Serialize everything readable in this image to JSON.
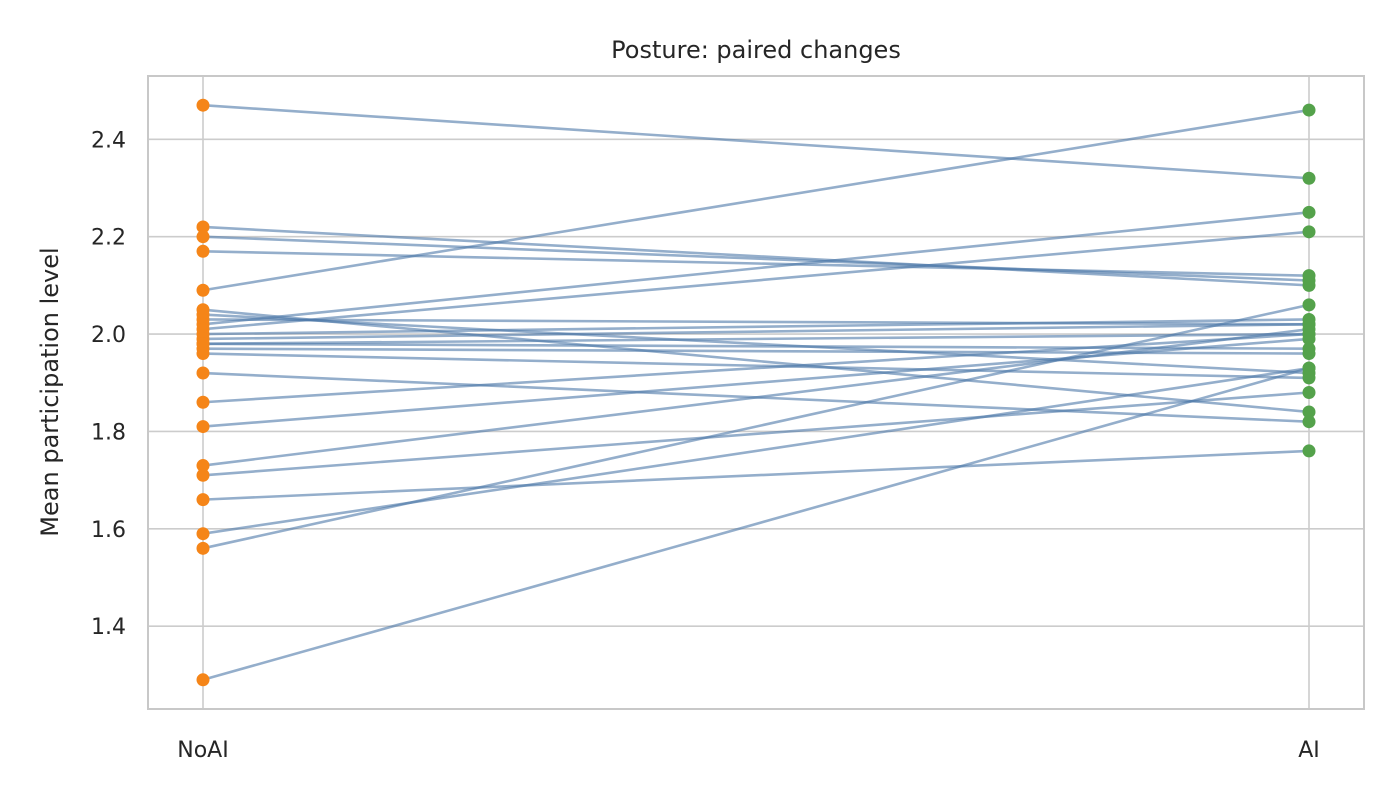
{
  "chart_data": {
    "type": "line",
    "title": "Posture: paired changes",
    "xlabel": "",
    "ylabel": "Mean participation level",
    "categories": [
      "NoAI",
      "AI"
    ],
    "ylim": [
      1.23,
      2.53
    ],
    "yticks": [
      1.4,
      1.6,
      1.8,
      2.0,
      2.2,
      2.4
    ],
    "ytick_labels": [
      "1.4",
      "1.6",
      "1.8",
      "2.0",
      "2.2",
      "2.4"
    ],
    "grid": true,
    "colors": {
      "lines": "#4c78a8",
      "noai_markers": "#f58518",
      "ai_markers": "#54a24b"
    },
    "pairs": [
      [
        2.47,
        2.32
      ],
      [
        2.22,
        2.1
      ],
      [
        2.2,
        2.11
      ],
      [
        2.17,
        2.12
      ],
      [
        2.09,
        2.46
      ],
      [
        2.05,
        1.84
      ],
      [
        2.04,
        1.92
      ],
      [
        2.03,
        2.02
      ],
      [
        2.02,
        2.25
      ],
      [
        2.01,
        2.21
      ],
      [
        2.0,
        2.03
      ],
      [
        1.99,
        2.02
      ],
      [
        1.98,
        2.0
      ],
      [
        1.98,
        1.97
      ],
      [
        1.97,
        1.96
      ],
      [
        1.96,
        1.91
      ],
      [
        1.92,
        1.82
      ],
      [
        1.86,
        2.0
      ],
      [
        1.81,
        1.99
      ],
      [
        1.73,
        2.01
      ],
      [
        1.71,
        1.88
      ],
      [
        1.66,
        1.76
      ],
      [
        1.59,
        1.93
      ],
      [
        1.56,
        2.06
      ],
      [
        1.29,
        1.93
      ]
    ]
  }
}
